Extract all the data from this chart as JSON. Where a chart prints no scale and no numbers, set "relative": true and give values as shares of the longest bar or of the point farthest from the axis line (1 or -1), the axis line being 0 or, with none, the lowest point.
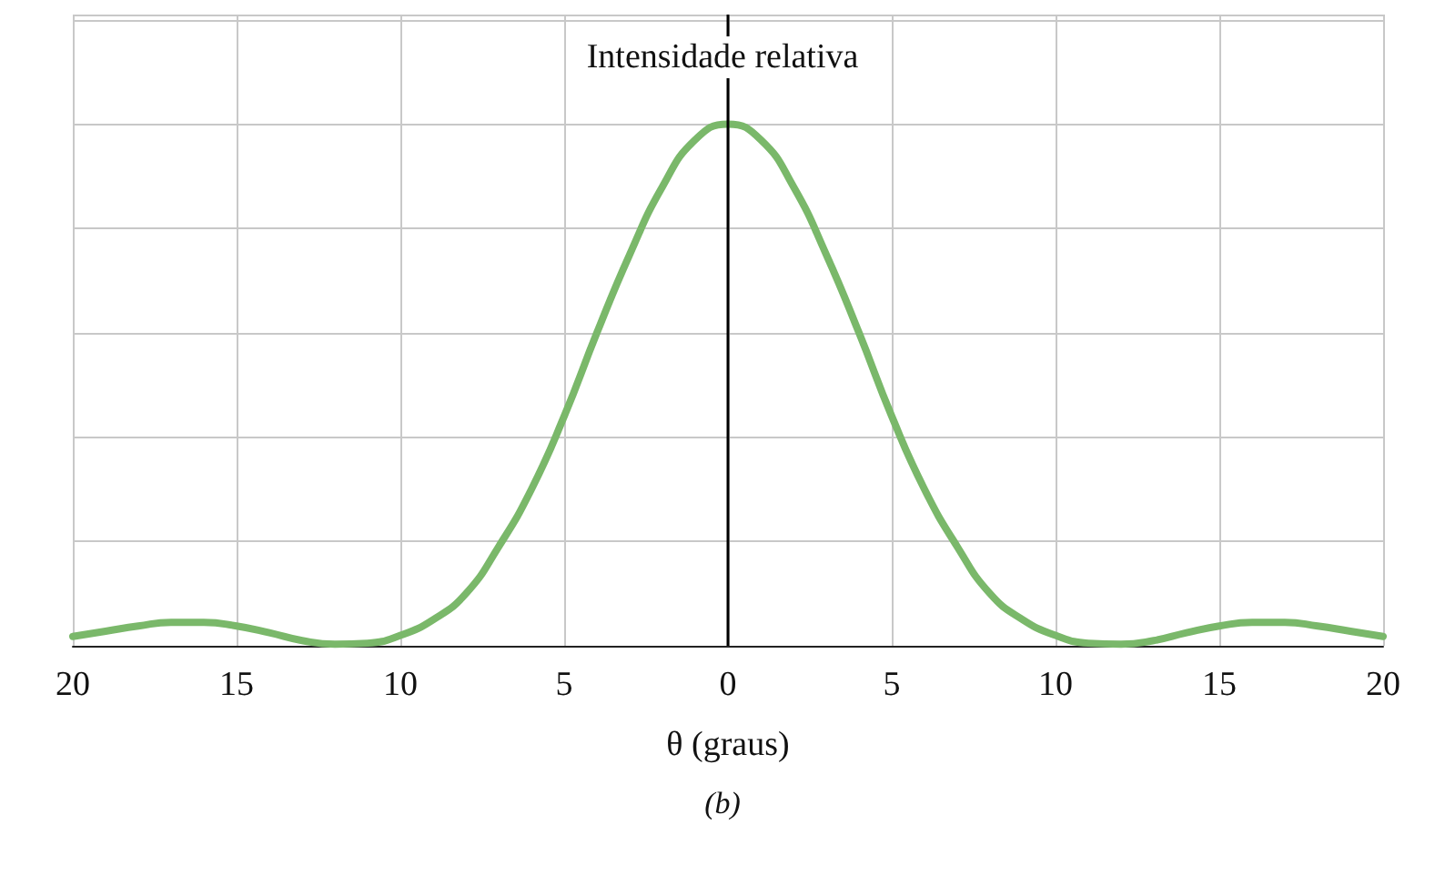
{
  "chart_data": {
    "type": "line",
    "ylabel": "Intensidade relativa",
    "xlabel": "θ (graus)",
    "annotations": [
      "(b)"
    ],
    "relative": true,
    "grid": true,
    "marker": "none",
    "xlim": [
      -20,
      20
    ],
    "xticks": [
      {
        "value": -20,
        "label": "20"
      },
      {
        "value": -15,
        "label": "15"
      },
      {
        "value": -10,
        "label": "10"
      },
      {
        "value": -5,
        "label": "5"
      },
      0,
      5,
      10,
      15,
      20
    ],
    "ref_lines": [
      {
        "axis": "x",
        "value": 0,
        "color": "#000000"
      }
    ],
    "x": [
      -20,
      -19,
      -18,
      -17,
      -16,
      -15,
      -14,
      -13,
      -12,
      -11,
      -10,
      -9,
      -8,
      -7,
      -6,
      -5,
      -4,
      -3,
      -2,
      -1,
      0,
      1,
      2,
      3,
      4,
      5,
      6,
      7,
      8,
      9,
      10,
      11,
      12,
      13,
      14,
      15,
      16,
      17,
      18,
      19,
      20
    ],
    "series": [
      {
        "color": "#7ab86a",
        "values": [
          0.018,
          0.028,
          0.038,
          0.045,
          0.045,
          0.038,
          0.025,
          0.01,
          0.003,
          0.005,
          0.02,
          0.05,
          0.1,
          0.19,
          0.3,
          0.44,
          0.6,
          0.75,
          0.88,
          0.97,
          1,
          0.97,
          0.88,
          0.75,
          0.6,
          0.44,
          0.3,
          0.19,
          0.1,
          0.05,
          0.02,
          0.005,
          0.003,
          0.01,
          0.025,
          0.038,
          0.045,
          0.045,
          0.038,
          0.028,
          0.018
        ]
      }
    ]
  }
}
